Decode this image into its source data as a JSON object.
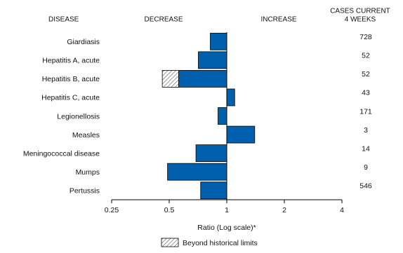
{
  "chart_data": {
    "type": "bar",
    "headers": {
      "disease": "DISEASE",
      "decrease": "DECREASE",
      "increase": "INCREASE",
      "cases": [
        "CASES CURRENT",
        "4 WEEKS"
      ]
    },
    "categories": [
      "Giardiasis",
      "Hepatitis A, acute",
      "Hepatitis B, acute",
      "Hepatitis C, acute",
      "Legionellosis",
      "Measles",
      "Meningococcal disease",
      "Mumps",
      "Pertussis"
    ],
    "values": [
      0.82,
      0.71,
      0.46,
      1.1,
      0.9,
      1.4,
      0.69,
      0.49,
      0.73
    ],
    "historical_limits": [
      null,
      null,
      0.56,
      null,
      null,
      null,
      null,
      null,
      null
    ],
    "cases": [
      728,
      52,
      52,
      43,
      171,
      3,
      14,
      9,
      546
    ],
    "color": "#0060ad",
    "xlabel": "Ratio (Log scale)*",
    "xscale": "log",
    "xlim": [
      0.25,
      4
    ],
    "xticks": [
      0.25,
      0.5,
      1,
      2,
      4
    ],
    "legend_label": "Beyond historical limits"
  }
}
